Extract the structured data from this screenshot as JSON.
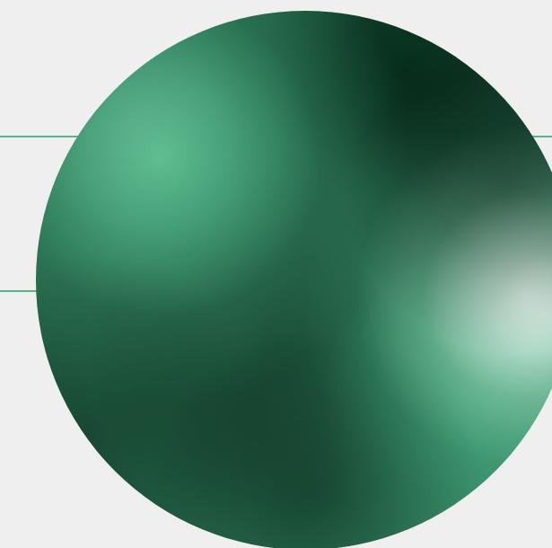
{
  "artwork": {
    "background_color": "#efefef",
    "accent_line_color": "#57b48e",
    "orb_palette": {
      "highlight": "#dff3e9",
      "light_green": "#5cbe91",
      "mid_green": "#2b7d58",
      "deep_green": "#18493a",
      "dark_green": "#062c1a"
    }
  }
}
